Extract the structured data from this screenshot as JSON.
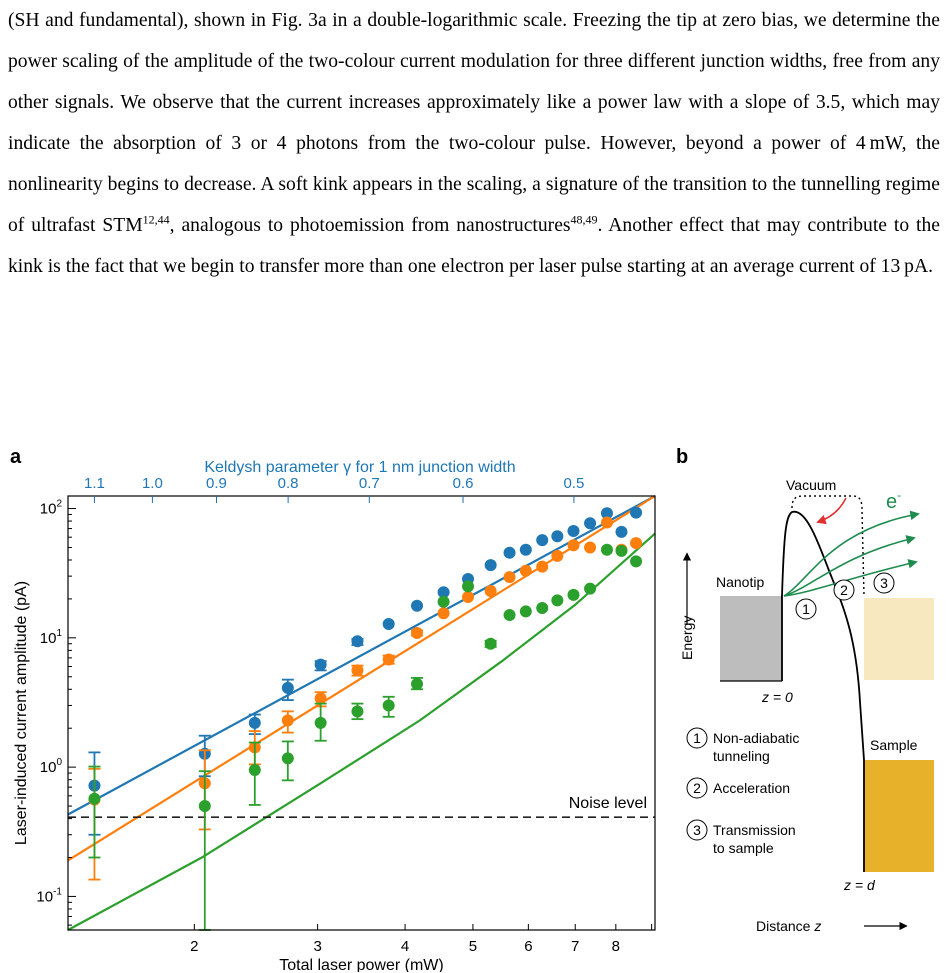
{
  "paragraph": {
    "text_1": "(SH and fundamental), shown in Fig. 3a in a double-logarithmic scale. Freezing the tip at zero bias, we determine the power scaling of the amplitude of the two-colour current modulation for three different junction widths, free from any other signals. We observe that the current increases approximately like a power law with a slope of 3.5, which may indicate the absorption of 3 or 4 photons from the two-colour pulse. However, beyond a power of 4 mW, the nonlinearity begins to decrease. A soft kink appears in the scaling, a signature of the transition to the tunnelling regime of ultrafast STM",
    "ref_1": "12,44",
    "text_2": ", analogous to photoemission from nanostructures",
    "ref_2": "48,49",
    "text_3": ". Another effect that may contribute to the kink is the fact that we begin to transfer more than one electron per laser pulse starting at an average current of 13 pA."
  },
  "figure": {
    "panel_a": "a",
    "panel_b": "b"
  },
  "chart_data": {
    "type": "scatter",
    "xscale": "log",
    "yscale": "log",
    "xlim": [
      1.32,
      9.1
    ],
    "ylim": [
      0.055,
      125
    ],
    "xlabel": "Total laser power (mW)",
    "ylabel": "Laser-induced current amplitude (pA)",
    "top_axis_label": "Keldysh parameter γ for 1 nm junction width",
    "x_ticks": [
      "2",
      "3",
      "4",
      "5",
      "6",
      "7",
      "8"
    ],
    "y_ticks": [
      "10-1",
      "100",
      "101",
      "102"
    ],
    "top_ticks": [
      "1.1",
      "1.0",
      "0.9",
      "0.8",
      "0.7",
      "0.6",
      "0.5"
    ],
    "noise_level": {
      "value": 0.41,
      "label": "Noise level"
    },
    "colors": {
      "blue": "#1f77b4",
      "orange": "#ff7f0e",
      "green": "#2ca02c"
    },
    "series": [
      {
        "color": "#1f77b4",
        "x": [
          1.44,
          2.07,
          2.44,
          2.72,
          3.03,
          3.42,
          3.79,
          4.16,
          4.54,
          4.92,
          5.3,
          5.64,
          5.95,
          6.28,
          6.6,
          6.96,
          7.35,
          7.77,
          8.15,
          8.55
        ],
        "y": [
          0.72,
          1.27,
          2.2,
          4.1,
          6.2,
          9.4,
          12.8,
          17.7,
          22.5,
          28.5,
          36.5,
          45.5,
          48,
          57,
          61,
          67,
          77,
          92,
          66,
          93
        ],
        "err_lo": [
          0.3,
          0.85,
          1.8,
          3.3,
          5.6,
          8.8,
          12.3,
          17.3,
          22.1,
          28.1,
          36.1,
          45.1,
          47.6,
          56.6,
          60.6,
          66.6,
          76.6,
          91.6,
          65.6,
          92.6
        ],
        "err_hi": [
          1.3,
          1.75,
          2.55,
          4.75,
          6.6,
          9.8,
          13.2,
          18.1,
          22.9,
          28.9,
          36.9,
          45.9,
          48.4,
          57.4,
          61.4,
          67.4,
          77.4,
          92.4,
          66.4,
          93.4
        ],
        "fit": {
          "x": [
            1.32,
            9.1
          ],
          "y": [
            0.43,
            125
          ]
        }
      },
      {
        "color": "#ff7f0e",
        "x": [
          1.44,
          2.07,
          2.44,
          2.72,
          3.03,
          3.42,
          3.79,
          4.16,
          4.54,
          4.92,
          5.3,
          5.64,
          5.95,
          6.28,
          6.6,
          6.96,
          7.35,
          7.77,
          8.15,
          8.55
        ],
        "y": [
          0.56,
          0.75,
          1.42,
          2.3,
          3.4,
          5.6,
          6.8,
          10.9,
          15.5,
          20.7,
          23,
          29.5,
          33,
          35.5,
          43,
          52,
          50,
          78,
          48,
          54
        ],
        "err_lo": [
          0.135,
          0.33,
          1.05,
          1.85,
          2.95,
          5.1,
          6.3,
          10.4,
          15.0,
          20.2,
          22.5,
          29.0,
          32.5,
          35.0,
          42.5,
          51.5,
          49.5,
          77.5,
          47.5,
          53.5
        ],
        "err_hi": [
          0.97,
          1.35,
          1.9,
          2.7,
          3.8,
          6.1,
          7.3,
          11.4,
          16.0,
          21.2,
          23.5,
          30.0,
          33.5,
          36.0,
          43.5,
          52.5,
          50.5,
          78.5,
          48.5,
          54.5
        ],
        "fit": {
          "x": [
            1.32,
            9.1
          ],
          "y": [
            0.19,
            125
          ]
        }
      },
      {
        "color": "#2ca02c",
        "x": [
          1.44,
          2.07,
          2.44,
          2.72,
          3.03,
          3.42,
          3.79,
          4.16,
          4.54,
          4.92,
          5.3,
          5.64,
          5.95,
          6.28,
          6.6,
          6.96,
          7.35,
          7.77,
          8.15,
          8.55
        ],
        "y": [
          0.57,
          0.5,
          0.95,
          1.17,
          2.2,
          2.7,
          3.0,
          4.4,
          19,
          25,
          9.0,
          15,
          16,
          17,
          19.5,
          21.5,
          24,
          48,
          47,
          39
        ],
        "err_lo": [
          0.2,
          0.055,
          0.51,
          0.79,
          1.6,
          2.35,
          2.45,
          4.0,
          18.5,
          24.5,
          8.5,
          14.5,
          15.5,
          16.5,
          19.0,
          21.0,
          23.5,
          47.5,
          46.5,
          38.5
        ],
        "err_hi": [
          1.01,
          0.93,
          1.55,
          1.58,
          3.1,
          3.1,
          3.5,
          4.9,
          19.5,
          25.5,
          9.5,
          15.5,
          16.5,
          17.5,
          20.0,
          22.0,
          24.5,
          48.5,
          47.5,
          39.5
        ],
        "fit": {
          "x": [
            1.32,
            2.05,
            3.03,
            4.2,
            5.5,
            7.0,
            9.1
          ],
          "y": [
            0.055,
            0.2,
            0.75,
            2.3,
            6.6,
            18,
            64
          ]
        }
      }
    ]
  },
  "diagram": {
    "vacuum": "Vacuum",
    "electron": "e",
    "electron_sup": "-",
    "energy": "Energy",
    "nanotip": "Nanotip",
    "sample": "Sample",
    "z0": "z = 0",
    "zd": "z = d",
    "distance": "Distance z",
    "steps": [
      {
        "num": "1",
        "label_1": "Non-adiabatic",
        "label_2": "tunneling"
      },
      {
        "num": "2",
        "label_1": "Acceleration",
        "label_2": ""
      },
      {
        "num": "3",
        "label_1": "Transmission",
        "label_2": "to sample"
      }
    ],
    "colors": {
      "tip": "#bdbdbd",
      "sample": "#e8b12a",
      "sample_light": "#f8e8c0",
      "arrow": "#1e8c4f",
      "red_arrow": "#e03030"
    }
  }
}
